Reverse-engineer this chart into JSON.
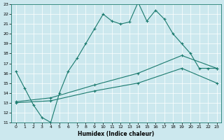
{
  "xlabel": "Humidex (Indice chaleur)",
  "xlim": [
    -0.5,
    23.5
  ],
  "ylim": [
    11,
    23
  ],
  "xticks": [
    0,
    1,
    2,
    3,
    4,
    5,
    6,
    7,
    8,
    9,
    10,
    11,
    12,
    13,
    14,
    15,
    16,
    17,
    18,
    19,
    20,
    21,
    22,
    23
  ],
  "yticks": [
    11,
    12,
    13,
    14,
    15,
    16,
    17,
    18,
    19,
    20,
    21,
    22,
    23
  ],
  "bg_color": "#cce8ee",
  "line_color": "#1a7a6e",
  "line1_x": [
    0,
    1,
    2,
    3,
    4,
    5,
    6,
    7,
    8,
    9,
    10,
    11,
    12,
    13,
    14,
    15,
    16,
    17,
    18,
    19,
    20,
    21,
    22,
    23
  ],
  "line1_y": [
    16.2,
    14.5,
    12.8,
    11.5,
    11.0,
    14.0,
    16.2,
    17.5,
    19.0,
    20.5,
    22.0,
    21.3,
    21.0,
    21.2,
    23.2,
    21.3,
    22.4,
    21.5,
    20.0,
    19.0,
    18.0,
    16.5,
    16.5,
    16.5
  ],
  "line2_x": [
    0,
    4,
    9,
    14,
    19,
    23
  ],
  "line2_y": [
    13.1,
    13.5,
    14.8,
    16.0,
    17.8,
    16.5
  ],
  "line3_x": [
    0,
    4,
    9,
    14,
    19,
    23
  ],
  "line3_y": [
    13.0,
    13.2,
    14.2,
    15.0,
    16.5,
    15.0
  ]
}
